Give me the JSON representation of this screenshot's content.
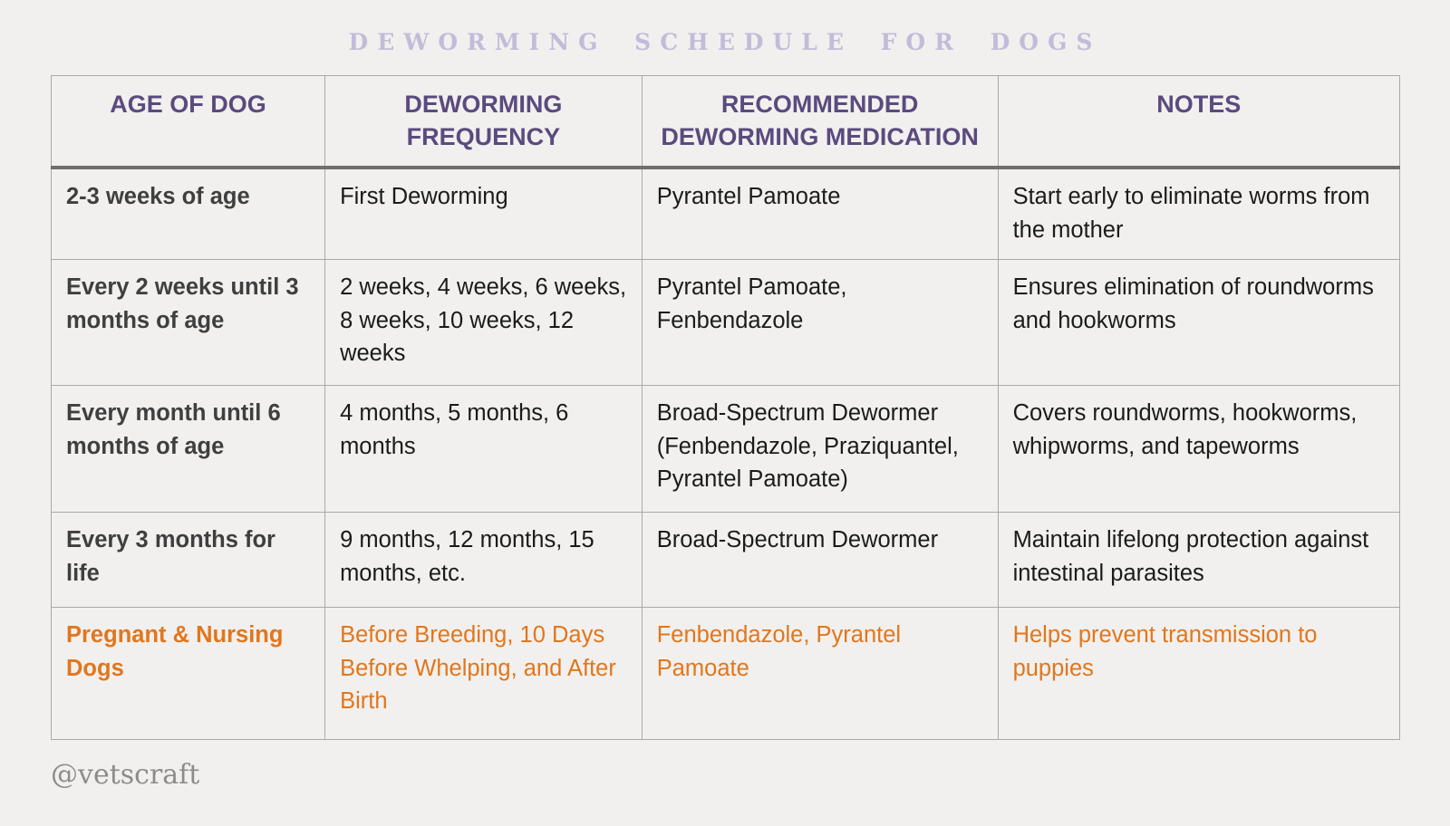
{
  "page": {
    "title": "DEWORMING SCHEDULE FOR DOGS",
    "watermark": "@vetscraft"
  },
  "colors": {
    "background": "#f1f0ee",
    "title": "#c4bbd9",
    "header_text": "#5b4a7e",
    "body_text": "#1b1b1b",
    "age_text": "#3f3f3f",
    "highlight_text": "#e2761c",
    "border": "#a9a9a9",
    "header_rule": "#6e6e6e",
    "watermark": "#8c8c8c"
  },
  "table": {
    "columns": [
      "AGE OF DOG",
      "DEWORMING FREQUENCY",
      "RECOMMENDED DEWORMING MEDICATION",
      "NOTES"
    ],
    "rows": [
      {
        "age": "2-3 weeks of age",
        "frequency": "First Deworming",
        "medication": "Pyrantel Pamoate",
        "notes": "Start early to eliminate worms from the mother",
        "highlight": false
      },
      {
        "age": "Every 2 weeks until 3 months of age",
        "frequency": "2 weeks, 4 weeks, 6 weeks, 8 weeks, 10 weeks, 12 weeks",
        "medication": "Pyrantel Pamoate, Fenbendazole",
        "notes": "Ensures elimination of roundworms and hookworms",
        "highlight": false
      },
      {
        "age": "Every month until 6 months of age",
        "frequency": "4 months, 5 months, 6 months",
        "medication": "Broad-Spectrum Dewormer (Fenbendazole, Praziquantel, Pyrantel Pamoate)",
        "notes": "Covers roundworms, hookworms, whipworms, and tapeworms",
        "highlight": false
      },
      {
        "age": "Every 3 months for life",
        "frequency": "9 months, 12 months, 15 months, etc.",
        "medication": "Broad-Spectrum Dewormer",
        "notes": "Maintain lifelong protection against intestinal parasites",
        "highlight": false
      },
      {
        "age": "Pregnant & Nursing Dogs",
        "frequency": "Before Breeding, 10 Days Before Whelping, and After Birth",
        "medication": "Fenbendazole, Pyrantel Pamoate",
        "notes": "Helps prevent transmission to puppies",
        "highlight": true
      }
    ]
  }
}
